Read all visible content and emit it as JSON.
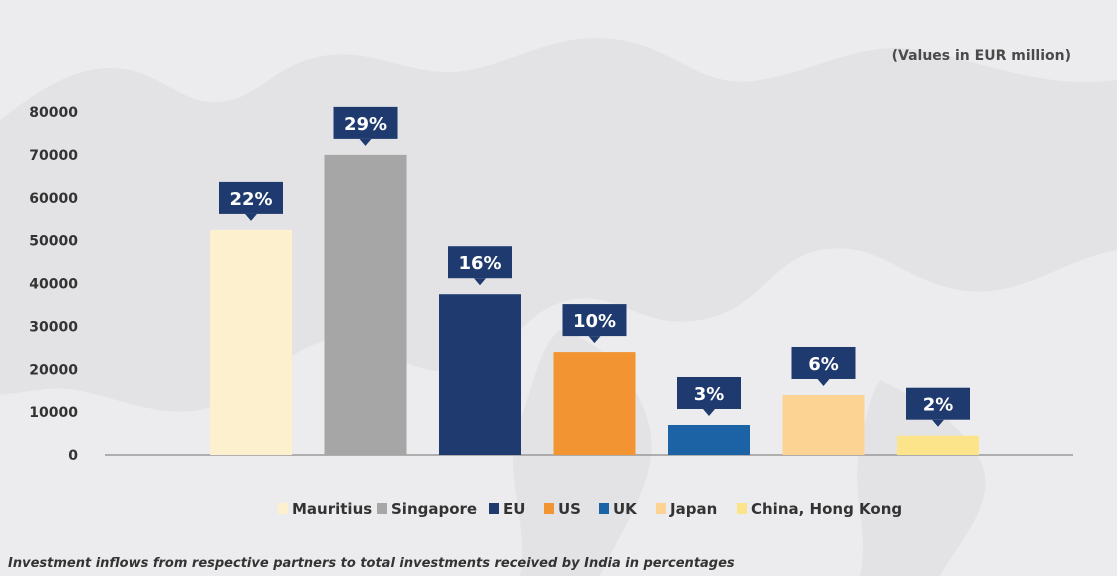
{
  "units_note": "(Values in EUR million)",
  "caption": "Investment inflows from respective partners to total investments received by India in percentages",
  "colors": {
    "background": "#ececee",
    "map": "#e2e2e5",
    "axis": "#9a9a9a",
    "callout": "#1e3a6e"
  },
  "chart_data": {
    "type": "bar",
    "categories": [
      "Mauritius",
      "Singapore",
      "EU",
      "US",
      "UK",
      "Japan",
      "China, Hong Kong"
    ],
    "values": [
      52500,
      70000,
      37500,
      24000,
      7000,
      14000,
      4500
    ],
    "data_labels": [
      "22%",
      "29%",
      "16%",
      "10%",
      "3%",
      "6%",
      "2%"
    ],
    "colors": [
      "#fdf0cf",
      "#a6a6a6",
      "#1e3a6e",
      "#f39433",
      "#1c63a6",
      "#fcd393",
      "#fbe48a"
    ],
    "yticks": [
      0,
      10000,
      20000,
      30000,
      40000,
      50000,
      60000,
      70000,
      80000
    ],
    "ylim": [
      0,
      80000
    ],
    "title": "",
    "xlabel": "",
    "ylabel": "",
    "legend_position": "bottom",
    "grid": false
  }
}
